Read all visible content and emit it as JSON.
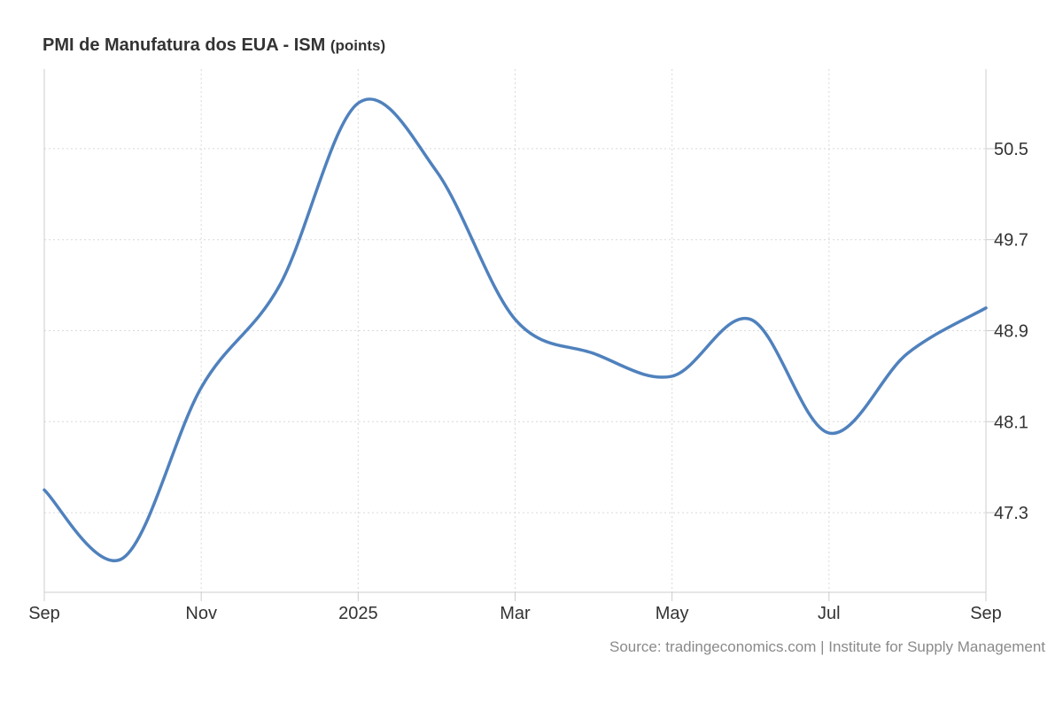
{
  "chart_data": {
    "type": "line",
    "title": "PMI de Manufatura dos EUA - ISM",
    "unit": "(points)",
    "x": [
      "2024-09",
      "2024-10",
      "2024-11",
      "2024-12",
      "2025-01",
      "2025-02",
      "2025-03",
      "2025-04",
      "2025-05",
      "2025-06",
      "2025-07",
      "2025-08",
      "2025-09"
    ],
    "series": [
      {
        "values": [
          47.5,
          46.9,
          48.4,
          49.3,
          50.9,
          50.3,
          49.0,
          48.7,
          48.5,
          49.0,
          48.0,
          48.7,
          49.1
        ],
        "color": "#4f81bd"
      }
    ],
    "x_tick_labels": [
      "Sep",
      "Nov",
      "2025",
      "Mar",
      "May",
      "Jul",
      "Sep"
    ],
    "y_ticks": [
      "47.3",
      "48.1",
      "48.9",
      "49.7",
      "50.5"
    ],
    "ylim": [
      46.6,
      51.2
    ],
    "y_axis_position": "right",
    "grid": true,
    "source": "Source: tradingeconomics.com | Institute for Supply Management",
    "colors": {
      "line": "#4f81bd",
      "grid": "#d9d9d9",
      "axis": "#cccccc",
      "text": "#333333",
      "source": "#8a8a8a"
    }
  }
}
